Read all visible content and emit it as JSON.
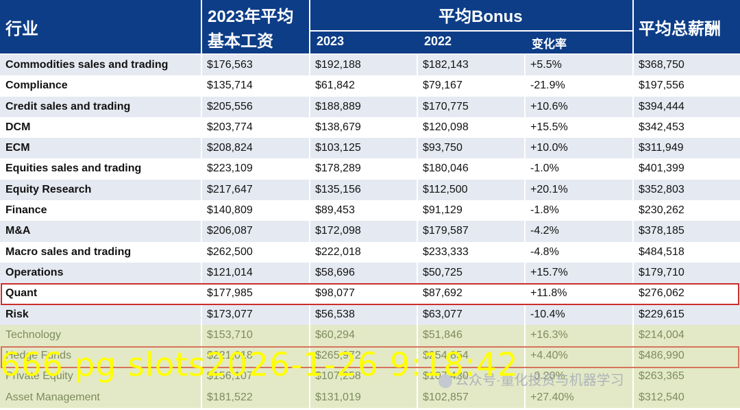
{
  "header": {
    "industry": "行业",
    "base_salary_line1": "2023年平均",
    "base_salary_line2": "基本工资",
    "bonus_group": "平均Bonus",
    "bonus_2023": "2023",
    "bonus_2022": "2022",
    "change_rate": "变化率",
    "total_comp": "平均总薪酬"
  },
  "rows": [
    {
      "industry": "Commodities sales and trading",
      "base": "$176,563",
      "b2023": "$192,188",
      "b2022": "$182,143",
      "change": "+5.5%",
      "total": "$368,750"
    },
    {
      "industry": "Compliance",
      "base": "$135,714",
      "b2023": "$61,842",
      "b2022": "$79,167",
      "change": "-21.9%",
      "total": "$197,556"
    },
    {
      "industry": "Credit sales and trading",
      "base": "$205,556",
      "b2023": "$188,889",
      "b2022": "$170,775",
      "change": "+10.6%",
      "total": "$394,444"
    },
    {
      "industry": "DCM",
      "base": "$203,774",
      "b2023": "$138,679",
      "b2022": "$120,098",
      "change": "+15.5%",
      "total": "$342,453"
    },
    {
      "industry": "ECM",
      "base": "$208,824",
      "b2023": "$103,125",
      "b2022": "$93,750",
      "change": "+10.0%",
      "total": "$311,949"
    },
    {
      "industry": "Equities sales and trading",
      "base": "$223,109",
      "b2023": "$178,289",
      "b2022": "$180,046",
      "change": "-1.0%",
      "total": "$401,399"
    },
    {
      "industry": "Equity Research",
      "base": "$217,647",
      "b2023": "$135,156",
      "b2022": "$112,500",
      "change": "+20.1%",
      "total": "$352,803"
    },
    {
      "industry": "Finance",
      "base": "$140,809",
      "b2023": "$89,453",
      "b2022": "$91,129",
      "change": "-1.8%",
      "total": "$230,262"
    },
    {
      "industry": "M&A",
      "base": "$206,087",
      "b2023": "$172,098",
      "b2022": "$179,587",
      "change": "-4.2%",
      "total": "$378,185"
    },
    {
      "industry": "Macro sales and trading",
      "base": "$262,500",
      "b2023": "$222,018",
      "b2022": "$233,333",
      "change": "-4.8%",
      "total": "$484,518"
    },
    {
      "industry": "Operations",
      "base": "$121,014",
      "b2023": "$58,696",
      "b2022": "$50,725",
      "change": "+15.7%",
      "total": "$179,710"
    },
    {
      "industry": "Quant",
      "base": "$177,985",
      "b2023": "$98,077",
      "b2022": "$87,692",
      "change": "+11.8%",
      "total": "$276,062"
    },
    {
      "industry": "Risk",
      "base": "$173,077",
      "b2023": "$56,538",
      "b2022": "$63,077",
      "change": "-10.4%",
      "total": "$229,615"
    },
    {
      "industry": "Technology",
      "base": "$153,710",
      "b2023": "$60,294",
      "b2022": "$51,846",
      "change": "+16.3%",
      "total": "$214,004"
    },
    {
      "industry": "Hedge Funds",
      "base": "$221,018",
      "b2023": "$265,972",
      "b2022": "$254,854",
      "change": "+4.40%",
      "total": "$486,990"
    },
    {
      "industry": "Private Equity",
      "base": "$156,107",
      "b2023": "$107,258",
      "b2022": "$107,430",
      "change": "-0.20%",
      "total": "$263,365"
    },
    {
      "industry": "Asset Management",
      "base": "$181,522",
      "b2023": "$131,019",
      "b2022": "$102,857",
      "change": "+27.40%",
      "total": "$312,540"
    }
  ],
  "overlay_text": "666 pg slots2026-1-26 9:18:42",
  "watermark_text": "公众号·量化投资与机器学习",
  "colors": {
    "header_bg": "#0d3d86",
    "row_stripe": "#e5e9f1",
    "tinted_row": "#e3e9c6",
    "highlight_quant": "#cc2b2b",
    "highlight_hedge": "#d6735b",
    "overlay": "#ffff00"
  }
}
